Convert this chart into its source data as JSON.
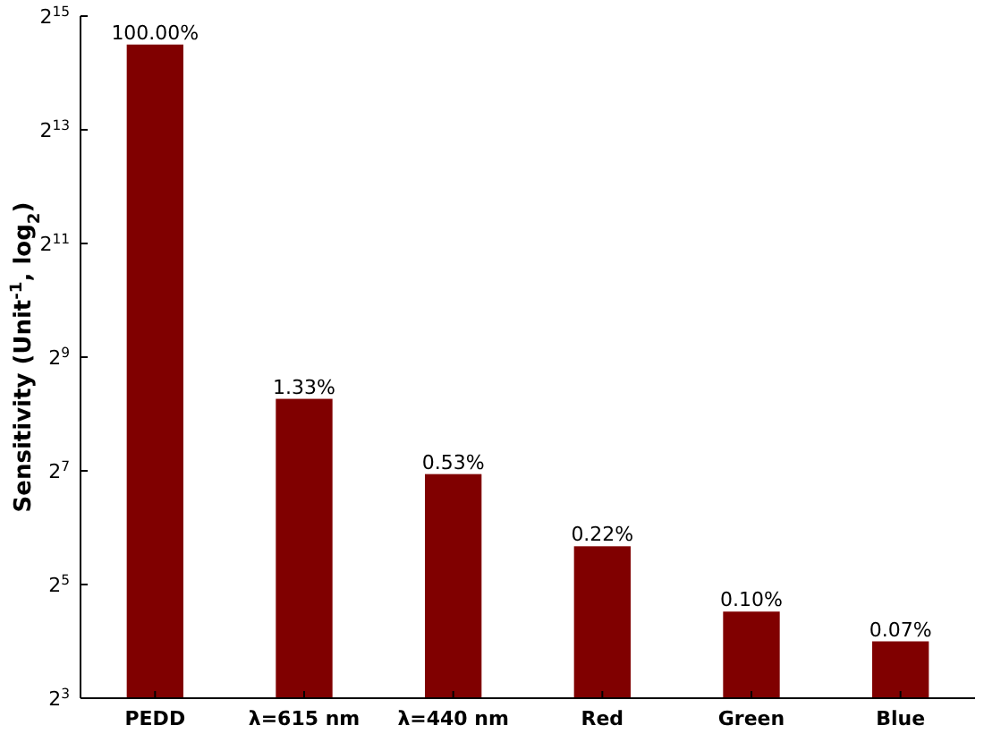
{
  "chart_data": {
    "type": "bar",
    "ylabel": "Sensitivity (Unit$^{-1}$, log$_{2}$)",
    "categories": [
      "PEDD",
      "λ=615 nm",
      "λ=440 nm",
      "Red",
      "Green",
      "Blue"
    ],
    "values": [
      23170,
      308,
      123,
      51,
      23,
      16
    ],
    "annotations": [
      {
        "text": "100.00%",
        "x": "PEDD",
        "y": 23170
      },
      {
        "text": "1.33%",
        "x": "λ=615 nm",
        "y": 308
      },
      {
        "text": "0.53%",
        "x": "λ=440 nm",
        "y": 123
      },
      {
        "text": "0.22%",
        "x": "Red",
        "y": 51
      },
      {
        "text": "0.10%",
        "x": "Green",
        "y": 23
      },
      {
        "text": "0.07%",
        "x": "Blue",
        "y": 16
      }
    ],
    "color": "#800000",
    "log": "y",
    "ylim": [
      8,
      32768
    ],
    "yticks": [
      {
        "value": 8,
        "label": "2$^{3}$"
      },
      {
        "value": 32,
        "label": "2$^{5}$"
      },
      {
        "value": 128,
        "label": "2$^{7}$"
      },
      {
        "value": 512,
        "label": "2$^{9}$"
      },
      {
        "value": 2048,
        "label": "2$^{11}$"
      },
      {
        "value": 8192,
        "label": "2$^{13}$"
      },
      {
        "value": 32768,
        "label": "2$^{15}$"
      }
    ],
    "grid": false
  }
}
